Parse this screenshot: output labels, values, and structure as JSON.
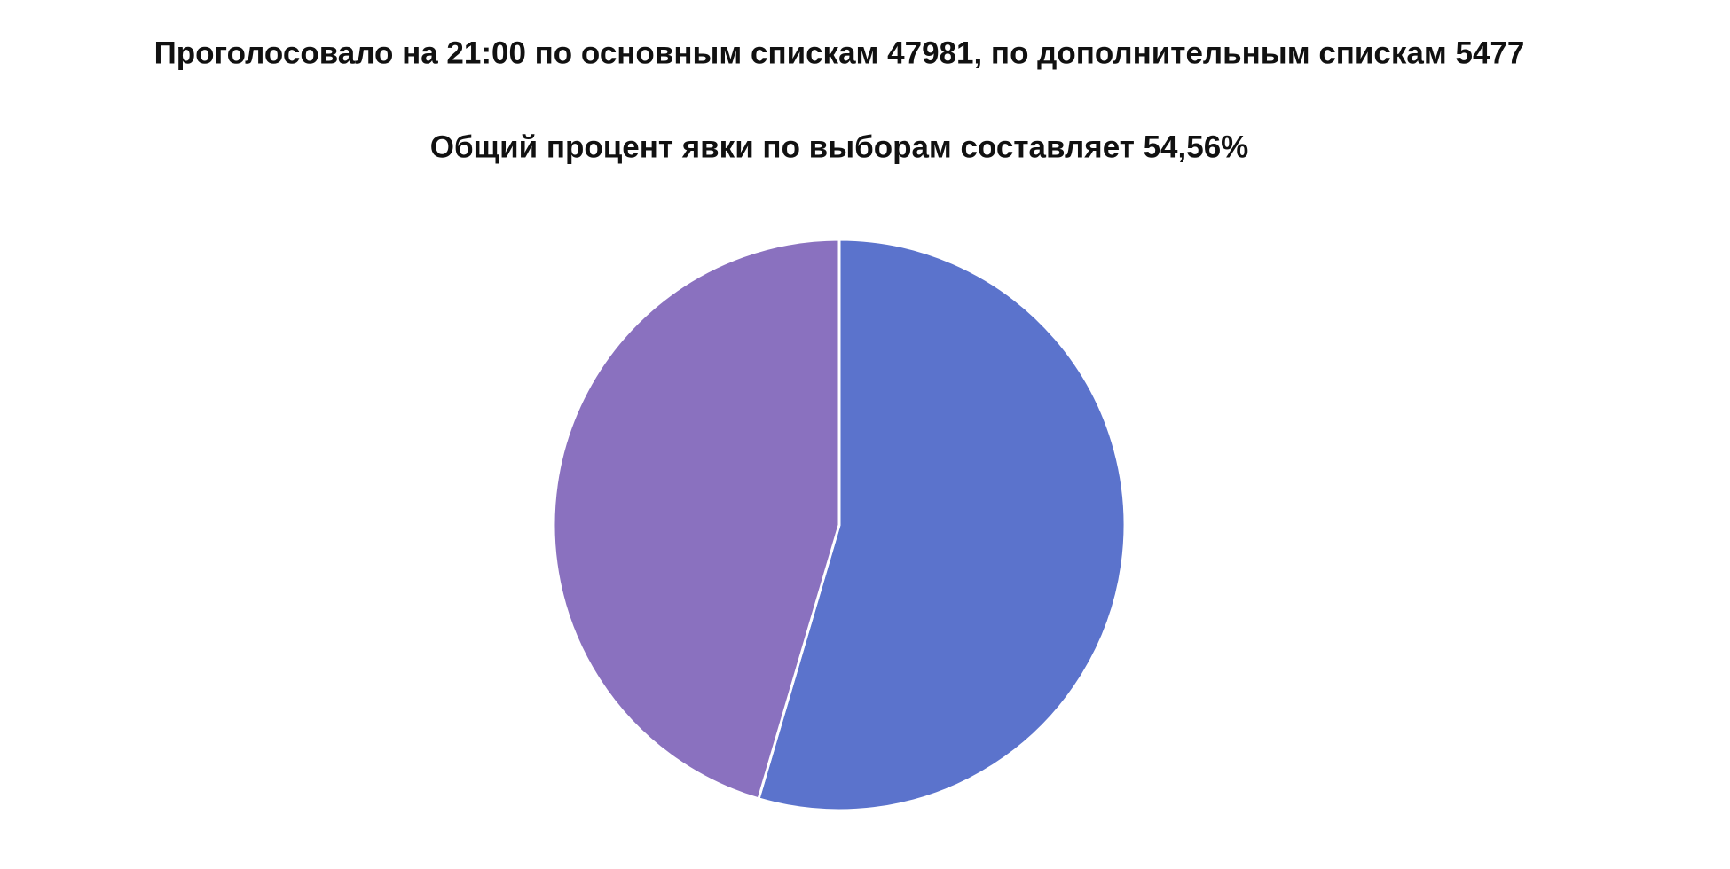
{
  "chart_data": {
    "type": "pie",
    "title": "Проголосовало на 21:00 по основным спискам 47981, по дополнительным спискам 5477",
    "subtitle": "Общий процент явки по выборам составляет 54,56%",
    "values": [
      54.56,
      45.44
    ],
    "colors": [
      "#5b73cc",
      "#8a71bf"
    ]
  }
}
